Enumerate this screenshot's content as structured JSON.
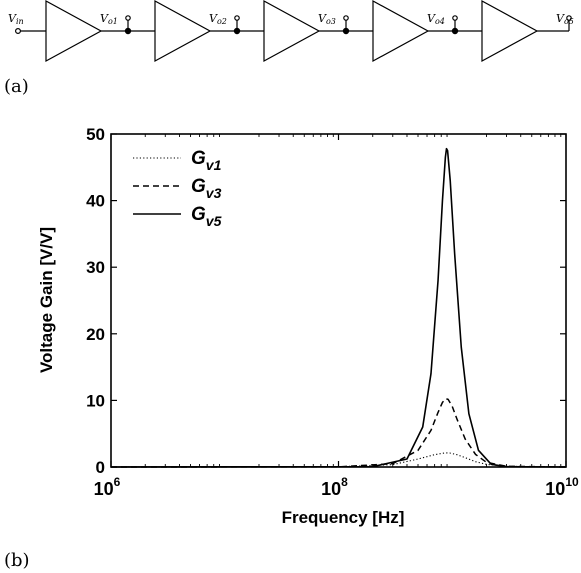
{
  "figure": {
    "panel_a_label": "(a)",
    "panel_b_label": "(b)"
  },
  "circuit": {
    "nodes": [
      {
        "main": "V",
        "sub": "in"
      },
      {
        "main": "V",
        "sub": "o1"
      },
      {
        "main": "V",
        "sub": "o2"
      },
      {
        "main": "V",
        "sub": "o3"
      },
      {
        "main": "V",
        "sub": "o4"
      },
      {
        "main": "V",
        "sub": "o5"
      }
    ]
  },
  "chart_data": {
    "type": "line",
    "xlabel": "Frequency [Hz]",
    "ylabel": "Voltage Gain [V/V]",
    "xscale": "log",
    "xlim": [
      1000000,
      10000000000
    ],
    "ylim": [
      0,
      50
    ],
    "grid": false,
    "legend_position": "top-left",
    "x_ticks": [
      {
        "base": "10",
        "exp": "6",
        "value": 1000000
      },
      {
        "base": "10",
        "exp": "8",
        "value": 100000000
      },
      {
        "base": "10",
        "exp": "10",
        "value": 10000000000
      }
    ],
    "y_ticks": [
      0,
      10,
      20,
      30,
      40,
      50
    ],
    "series": [
      {
        "legend_main": "G",
        "legend_sub": "v1",
        "style": "dotted",
        "points": [
          [
            1000000,
            0
          ],
          [
            100000000,
            0.05
          ],
          [
            300000000,
            0.35
          ],
          [
            500000000,
            1.2
          ],
          [
            700000000,
            1.85
          ],
          [
            850000000,
            2.1
          ],
          [
            900000000,
            2.12
          ],
          [
            950000000,
            2.1
          ],
          [
            1100000000,
            1.85
          ],
          [
            1300000000,
            1.4
          ],
          [
            1600000000,
            0.8
          ],
          [
            2000000000,
            0.4
          ],
          [
            3000000000,
            0.12
          ],
          [
            5000000000,
            0.03
          ],
          [
            10000000000,
            0
          ]
        ]
      },
      {
        "legend_main": "G",
        "legend_sub": "v3",
        "style": "dashed",
        "points": [
          [
            1000000,
            0
          ],
          [
            100000000,
            0.02
          ],
          [
            300000000,
            0.5
          ],
          [
            500000000,
            2.5
          ],
          [
            650000000,
            5.5
          ],
          [
            750000000,
            8.2
          ],
          [
            820000000,
            9.7
          ],
          [
            880000000,
            10.25
          ],
          [
            920000000,
            10.15
          ],
          [
            1000000000,
            9.1
          ],
          [
            1100000000,
            7.2
          ],
          [
            1300000000,
            4.2
          ],
          [
            1600000000,
            1.9
          ],
          [
            2000000000,
            0.7
          ],
          [
            3000000000,
            0.1
          ],
          [
            10000000000,
            0
          ]
        ]
      },
      {
        "legend_main": "G",
        "legend_sub": "v5",
        "style": "solid",
        "points": [
          [
            1000000,
            0
          ],
          [
            200000000,
            0.05
          ],
          [
            400000000,
            1.2
          ],
          [
            550000000,
            6
          ],
          [
            650000000,
            14
          ],
          [
            750000000,
            28
          ],
          [
            820000000,
            40
          ],
          [
            870000000,
            46.5
          ],
          [
            890000000,
            47.8
          ],
          [
            910000000,
            47.5
          ],
          [
            960000000,
            43
          ],
          [
            1050000000,
            32
          ],
          [
            1200000000,
            18
          ],
          [
            1400000000,
            8
          ],
          [
            1700000000,
            2.5
          ],
          [
            2200000000,
            0.4
          ],
          [
            3000000000,
            0.05
          ],
          [
            10000000000,
            0
          ]
        ]
      }
    ]
  }
}
